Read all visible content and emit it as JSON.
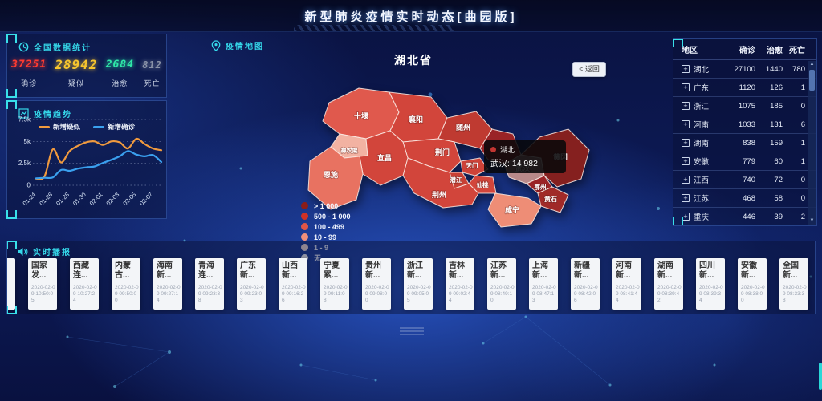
{
  "header": {
    "title": "新型肺炎疫情实时动态[曲园版]"
  },
  "stats_panel": {
    "title": "全国数据统计",
    "items": [
      {
        "value": "37251",
        "label": "确诊",
        "color": "#ff3b30"
      },
      {
        "value": "28942",
        "label": "疑似",
        "color": "#f7c52e"
      },
      {
        "value": "2684",
        "label": "治愈",
        "color": "#2fe8a8"
      },
      {
        "value": "812",
        "label": "死亡",
        "color": "#8a93a8"
      }
    ]
  },
  "trend_panel": {
    "title": "疫情趋势"
  },
  "chart_data": {
    "type": "line",
    "title": "疫情趋势",
    "x": [
      "01-24",
      "01-25",
      "01-26",
      "01-27",
      "01-28",
      "01-29",
      "01-30",
      "01-31",
      "02-01",
      "02-02",
      "02-03",
      "02-04",
      "02-05",
      "02-06",
      "02-07",
      "02-08"
    ],
    "x_tick_labels": [
      "01-24",
      "01-26",
      "01-28",
      "01-30",
      "02-01",
      "02-03",
      "02-05",
      "02-07"
    ],
    "series": [
      {
        "name": "新增疑似",
        "color": "#f09a3e",
        "values": [
          750,
          1000,
          4100,
          2600,
          3900,
          4500,
          4900,
          5000,
          4600,
          5000,
          4900,
          4200,
          5300,
          4700,
          4200,
          4000
        ]
      },
      {
        "name": "新增确诊",
        "color": "#3aa0ef",
        "values": [
          800,
          850,
          900,
          1750,
          1650,
          1900,
          2050,
          2150,
          2550,
          2900,
          3300,
          3900,
          3500,
          3300,
          3450,
          2650
        ]
      }
    ],
    "ylim": [
      0,
      7500
    ],
    "y_ticks": [
      0,
      2500,
      5000,
      7500
    ],
    "y_tick_labels": [
      "0",
      "2.5k",
      "5k",
      "7.5k"
    ],
    "grid": "dotted-horizontal",
    "legend_position": "top-center"
  },
  "map_panel": {
    "title": "疫情地图",
    "map_title": "湖北省",
    "back_button": "< 返回",
    "tooltip": {
      "region": "湖北",
      "detail": "武汉: 14 982"
    },
    "legend": [
      {
        "label": "> 1 000",
        "color": "#8c1d18"
      },
      {
        "label": "500 - 1 000",
        "color": "#cf3125"
      },
      {
        "label": "100 - 499",
        "color": "#e15647"
      },
      {
        "label": "10 - 99",
        "color": "#f2907b"
      },
      {
        "label": "1 - 9",
        "color": "#fbe3da"
      },
      {
        "label": "无",
        "color": "#ffffff"
      }
    ],
    "cities": [
      "十堰",
      "神农架",
      "襄阳",
      "随州",
      "荆门",
      "宜昌",
      "恩施",
      "荆州",
      "天门",
      "潜江",
      "仙桃",
      "武汉",
      "鄂州",
      "黄冈",
      "黄石",
      "咸宁"
    ]
  },
  "table_panel": {
    "columns": [
      "地区",
      "确诊",
      "治愈",
      "死亡"
    ],
    "rows": [
      {
        "region": "湖北",
        "confirmed": "27100",
        "cured": "1440",
        "dead": "780"
      },
      {
        "region": "广东",
        "confirmed": "1120",
        "cured": "126",
        "dead": "1"
      },
      {
        "region": "浙江",
        "confirmed": "1075",
        "cured": "185",
        "dead": "0"
      },
      {
        "region": "河南",
        "confirmed": "1033",
        "cured": "131",
        "dead": "6"
      },
      {
        "region": "湖南",
        "confirmed": "838",
        "cured": "159",
        "dead": "1"
      },
      {
        "region": "安徽",
        "confirmed": "779",
        "cured": "60",
        "dead": "1"
      },
      {
        "region": "江西",
        "confirmed": "740",
        "cured": "72",
        "dead": "0"
      },
      {
        "region": "江苏",
        "confirmed": "468",
        "cured": "58",
        "dead": "0"
      },
      {
        "region": "重庆",
        "confirmed": "446",
        "cured": "39",
        "dead": "2"
      }
    ]
  },
  "broadcast_panel": {
    "title": "实时播报",
    "cards": [
      {
        "title": "",
        "time": ""
      },
      {
        "title": "国家发...",
        "time": "2020-02-09 10:50:05"
      },
      {
        "title": "西藏连...",
        "time": "2020-02-09 10:27:24"
      },
      {
        "title": "内蒙古...",
        "time": "2020-02-09 09:50:00"
      },
      {
        "title": "海南新...",
        "time": "2020-02-09 09:27:14"
      },
      {
        "title": "青海连...",
        "time": "2020-02-09 09:23:38"
      },
      {
        "title": "广东新...",
        "time": "2020-02-09 09:23:03"
      },
      {
        "title": "山西新...",
        "time": "2020-02-09 09:16:26"
      },
      {
        "title": "宁夏累...",
        "time": "2020-02-09 09:11:08"
      },
      {
        "title": "贵州新...",
        "time": "2020-02-09 09:08:00"
      },
      {
        "title": "浙江新...",
        "time": "2020-02-09 09:05:05"
      },
      {
        "title": "吉林新...",
        "time": "2020-02-09 09:02:44"
      },
      {
        "title": "江苏新...",
        "time": "2020-02-09 08:49:10"
      },
      {
        "title": "上海新...",
        "time": "2020-02-09 08:47:13"
      },
      {
        "title": "新疆新...",
        "time": "2020-02-09 08:42:06"
      },
      {
        "title": "河南新...",
        "time": "2020-02-09 08:41:44"
      },
      {
        "title": "湖南新...",
        "time": "2020-02-09 08:39:42"
      },
      {
        "title": "四川新...",
        "time": "2020-02-09 08:39:34"
      },
      {
        "title": "安徽新...",
        "time": "2020-02-09 08:38:00"
      },
      {
        "title": "全国新...",
        "time": "2020-02-09 08:33:38"
      }
    ]
  }
}
